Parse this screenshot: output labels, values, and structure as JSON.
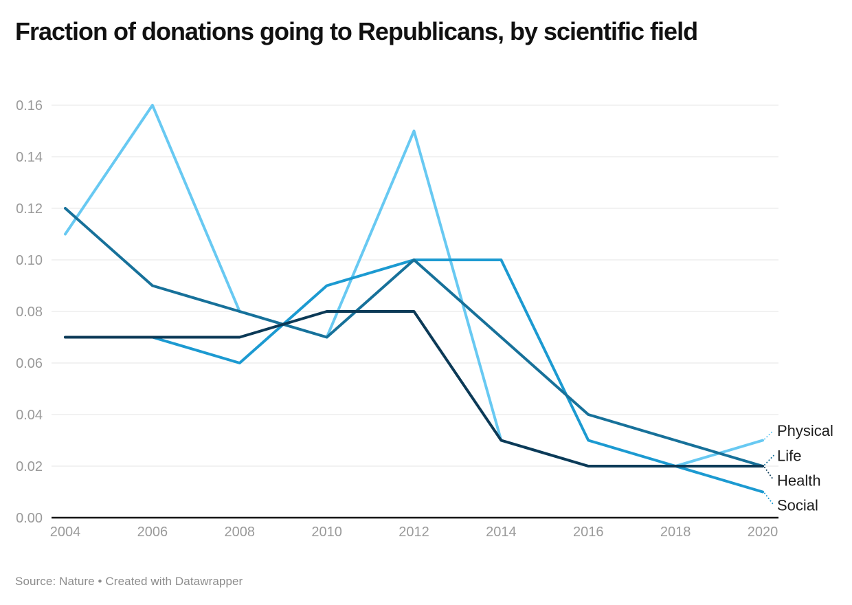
{
  "header": {
    "title": "Fraction of donations going to Republicans, by scientific field"
  },
  "footer": {
    "source_note": "Source: Nature • Created with Datawrapper"
  },
  "chart_data": {
    "type": "line",
    "title": "Fraction of donations going to Republicans, by scientific field",
    "x": [
      2004,
      2006,
      2008,
      2010,
      2012,
      2014,
      2016,
      2018,
      2020
    ],
    "xtick_labels": [
      "2004",
      "2006",
      "2008",
      "2010",
      "2012",
      "2014",
      "2016",
      "2018",
      "2020"
    ],
    "ylim": [
      0,
      0.16
    ],
    "yticks": [
      0.0,
      0.02,
      0.04,
      0.06,
      0.08,
      0.1,
      0.12,
      0.14,
      0.16
    ],
    "ytick_label_format": "two-decimals",
    "grid": "horizontal",
    "legend_position": "direct-labels-right",
    "series": [
      {
        "name": "Physical",
        "color": "#68c9f2",
        "values": [
          0.11,
          0.16,
          0.08,
          0.07,
          0.15,
          0.03,
          0.02,
          0.02,
          0.03
        ]
      },
      {
        "name": "Social",
        "color": "#1c9ad1",
        "values": [
          0.07,
          0.07,
          0.06,
          0.09,
          0.1,
          0.1,
          0.03,
          0.02,
          0.01
        ]
      },
      {
        "name": "Life",
        "color": "#17719a",
        "values": [
          0.12,
          0.09,
          0.08,
          0.07,
          0.1,
          0.07,
          0.04,
          0.03,
          0.02
        ]
      },
      {
        "name": "Health",
        "color": "#0c3a57",
        "values": [
          0.07,
          0.07,
          0.07,
          0.08,
          0.08,
          0.03,
          0.02,
          0.02,
          0.02
        ]
      }
    ],
    "label_order_top_to_bottom": [
      "Physical",
      "Life",
      "Health",
      "Social"
    ],
    "axis_baseline_color": "#151515",
    "gridline_color": "#e6e6e6"
  }
}
